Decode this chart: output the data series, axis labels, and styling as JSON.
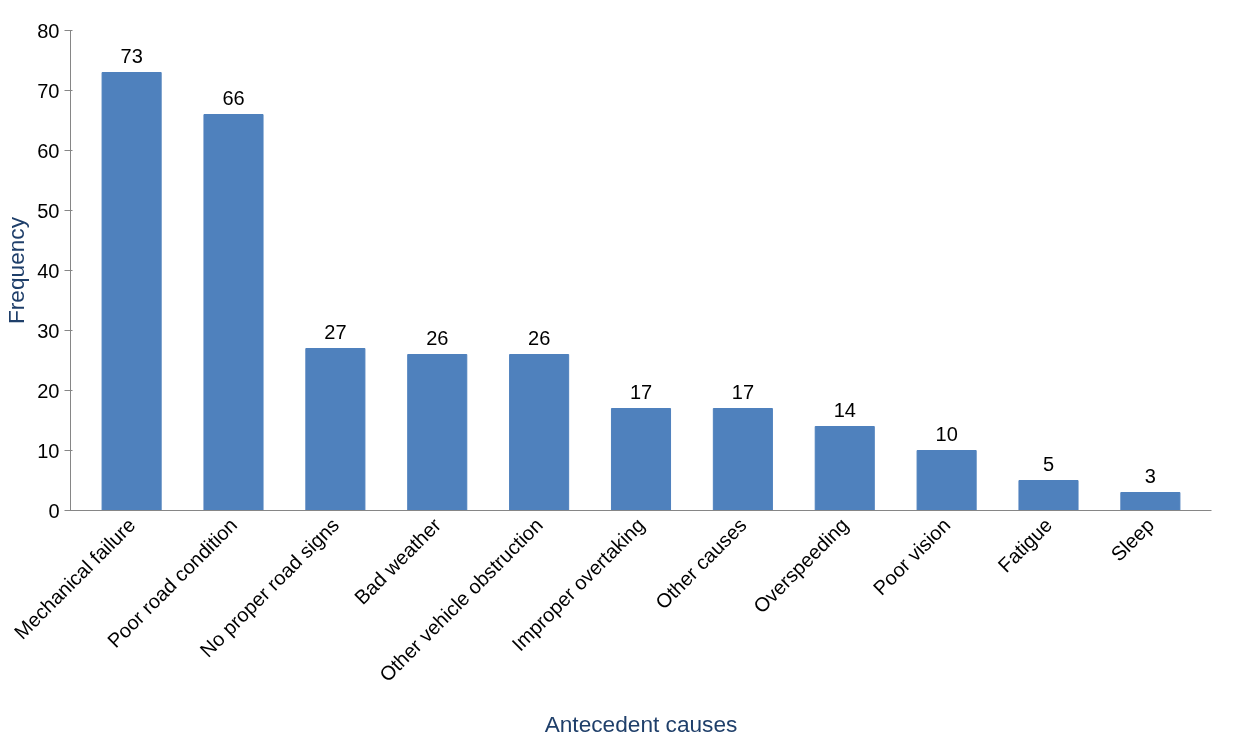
{
  "chart_data": {
    "type": "bar",
    "xlabel": "Antecedent causes",
    "ylabel": "Frequency",
    "categories": [
      "Mechanical failure",
      "Poor road condition",
      "No proper road signs",
      "Bad weather",
      "Other vehicle obstruction",
      "Improper overtaking",
      "Other causes",
      "Overspeeding",
      "Poor vision",
      "Fatigue",
      "Sleep"
    ],
    "values": [
      73,
      66,
      27,
      26,
      26,
      17,
      17,
      14,
      10,
      5,
      3
    ],
    "color": "#4f81bd",
    "ylim": [
      0,
      80
    ],
    "yticks": [
      0,
      10,
      20,
      30,
      40,
      50,
      60,
      70,
      80
    ],
    "grid": false,
    "data_labels": true
  }
}
